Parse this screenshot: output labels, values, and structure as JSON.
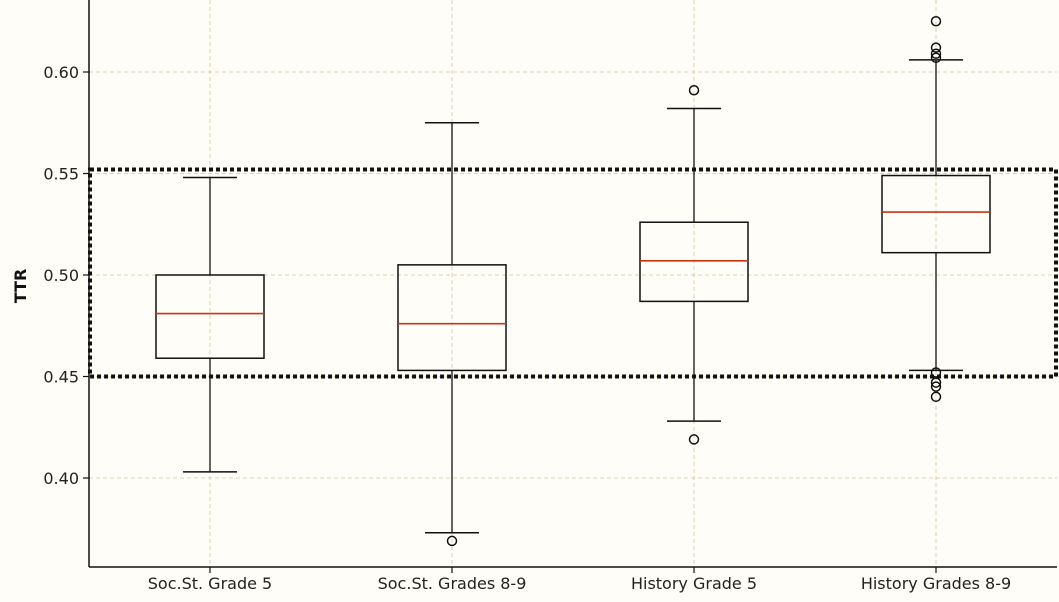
{
  "chart_data": {
    "type": "box",
    "title": "",
    "xlabel": "",
    "ylabel": "TTR",
    "ylim": [
      0.35,
      0.64
    ],
    "yticks": [
      0.4,
      0.45,
      0.5,
      0.55,
      0.6
    ],
    "ytick_labels": [
      "0.40",
      "0.45",
      "0.50",
      "0.55",
      "0.60"
    ],
    "grid": true,
    "colors": {
      "box": "#111111",
      "median": "#cc3311",
      "grid": "#d8d2b0",
      "highlight": "#111111"
    },
    "highlight_band": [
      0.45,
      0.552
    ],
    "categories": [
      "Soc.St. Grade 5",
      "Soc.St. Grades 8-9",
      "History Grade 5",
      "History Grades 8-9"
    ],
    "boxes": [
      {
        "whisker_low": 0.403,
        "q1": 0.459,
        "median": 0.481,
        "q3": 0.5,
        "whisker_high": 0.548,
        "outliers": []
      },
      {
        "whisker_low": 0.373,
        "q1": 0.453,
        "median": 0.476,
        "q3": 0.505,
        "whisker_high": 0.575,
        "outliers": [
          0.369
        ]
      },
      {
        "whisker_low": 0.428,
        "q1": 0.487,
        "median": 0.507,
        "q3": 0.526,
        "whisker_high": 0.582,
        "outliers": [
          0.591,
          0.419
        ]
      },
      {
        "whisker_low": 0.453,
        "q1": 0.511,
        "median": 0.531,
        "q3": 0.549,
        "whisker_high": 0.606,
        "outliers": [
          0.625,
          0.612,
          0.609,
          0.607,
          0.452,
          0.447,
          0.445,
          0.44
        ]
      }
    ]
  }
}
